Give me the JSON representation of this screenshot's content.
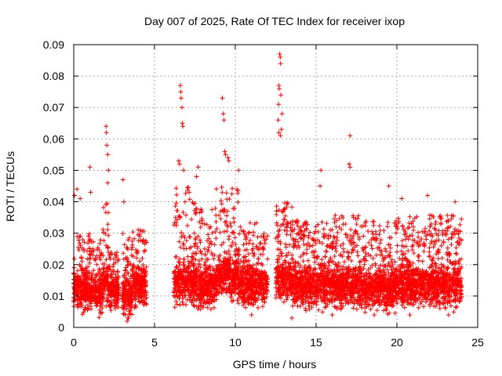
{
  "chart_data": {
    "type": "scatter",
    "title": "Day 007 of 2025, Rate Of TEC Index for receiver ixop",
    "xlabel": "GPS time / hours",
    "ylabel": "ROTI / TECUs",
    "xlim": [
      0,
      25
    ],
    "ylim": [
      0,
      0.09
    ],
    "xticks": [
      "0",
      "5",
      "10",
      "15",
      "20",
      "25"
    ],
    "yticks": [
      "0",
      "0.01",
      "0.02",
      "0.03",
      "0.04",
      "0.05",
      "0.06",
      "0.07",
      "0.08",
      "0.09"
    ],
    "grid": true,
    "marker": "+",
    "color": "#ff0000",
    "segments": [
      {
        "x0": 0.0,
        "x1": 1.0,
        "base": 0.012,
        "top": 0.03
      },
      {
        "x0": 1.0,
        "x1": 1.8,
        "base": 0.011,
        "top": 0.028
      },
      {
        "x0": 1.8,
        "x1": 2.2,
        "base": 0.013,
        "top": 0.04
      },
      {
        "x0": 2.2,
        "x1": 2.8,
        "base": 0.011,
        "top": 0.024
      },
      {
        "x0": 3.0,
        "x1": 3.6,
        "base": 0.01,
        "top": 0.03
      },
      {
        "x0": 3.6,
        "x1": 4.5,
        "base": 0.013,
        "top": 0.032
      },
      {
        "x0": 6.2,
        "x1": 7.5,
        "base": 0.014,
        "top": 0.045
      },
      {
        "x0": 7.5,
        "x1": 8.8,
        "base": 0.013,
        "top": 0.038
      },
      {
        "x0": 8.8,
        "x1": 10.2,
        "base": 0.016,
        "top": 0.045
      },
      {
        "x0": 10.2,
        "x1": 12.0,
        "base": 0.013,
        "top": 0.034
      },
      {
        "x0": 12.5,
        "x1": 13.5,
        "base": 0.015,
        "top": 0.04
      },
      {
        "x0": 13.5,
        "x1": 16.0,
        "base": 0.013,
        "top": 0.034
      },
      {
        "x0": 16.0,
        "x1": 18.0,
        "base": 0.013,
        "top": 0.036
      },
      {
        "x0": 18.0,
        "x1": 20.0,
        "base": 0.012,
        "top": 0.034
      },
      {
        "x0": 20.0,
        "x1": 22.0,
        "base": 0.013,
        "top": 0.036
      },
      {
        "x0": 22.0,
        "x1": 24.0,
        "base": 0.013,
        "top": 0.036
      }
    ],
    "peaks": [
      {
        "x": 0.05,
        "y": 0.042
      },
      {
        "x": 0.2,
        "y": 0.044
      },
      {
        "x": 0.4,
        "y": 0.041
      },
      {
        "x": 1.0,
        "y": 0.051
      },
      {
        "x": 1.05,
        "y": 0.043
      },
      {
        "x": 2.0,
        "y": 0.064
      },
      {
        "x": 2.02,
        "y": 0.062
      },
      {
        "x": 2.05,
        "y": 0.058
      },
      {
        "x": 2.1,
        "y": 0.055
      },
      {
        "x": 2.15,
        "y": 0.05
      },
      {
        "x": 2.1,
        "y": 0.046
      },
      {
        "x": 3.05,
        "y": 0.047
      },
      {
        "x": 3.1,
        "y": 0.04
      },
      {
        "x": 6.6,
        "y": 0.077
      },
      {
        "x": 6.62,
        "y": 0.075
      },
      {
        "x": 6.65,
        "y": 0.073
      },
      {
        "x": 6.7,
        "y": 0.07
      },
      {
        "x": 6.72,
        "y": 0.065
      },
      {
        "x": 6.75,
        "y": 0.064
      },
      {
        "x": 6.5,
        "y": 0.053
      },
      {
        "x": 6.55,
        "y": 0.052
      },
      {
        "x": 6.8,
        "y": 0.05
      },
      {
        "x": 7.7,
        "y": 0.051
      },
      {
        "x": 7.6,
        "y": 0.048
      },
      {
        "x": 9.2,
        "y": 0.073
      },
      {
        "x": 9.25,
        "y": 0.068
      },
      {
        "x": 9.3,
        "y": 0.066
      },
      {
        "x": 9.35,
        "y": 0.056
      },
      {
        "x": 9.4,
        "y": 0.055
      },
      {
        "x": 9.55,
        "y": 0.054
      },
      {
        "x": 9.6,
        "y": 0.053
      },
      {
        "x": 10.2,
        "y": 0.05
      },
      {
        "x": 12.75,
        "y": 0.087
      },
      {
        "x": 12.78,
        "y": 0.086
      },
      {
        "x": 12.8,
        "y": 0.084
      },
      {
        "x": 12.7,
        "y": 0.077
      },
      {
        "x": 12.72,
        "y": 0.076
      },
      {
        "x": 12.82,
        "y": 0.074
      },
      {
        "x": 12.68,
        "y": 0.071
      },
      {
        "x": 12.9,
        "y": 0.068
      },
      {
        "x": 12.65,
        "y": 0.066
      },
      {
        "x": 12.85,
        "y": 0.063
      },
      {
        "x": 12.7,
        "y": 0.062
      },
      {
        "x": 12.8,
        "y": 0.061
      },
      {
        "x": 15.3,
        "y": 0.05
      },
      {
        "x": 15.25,
        "y": 0.045
      },
      {
        "x": 17.1,
        "y": 0.061
      },
      {
        "x": 17.05,
        "y": 0.052
      },
      {
        "x": 17.1,
        "y": 0.051
      },
      {
        "x": 19.5,
        "y": 0.045
      },
      {
        "x": 20.3,
        "y": 0.041
      },
      {
        "x": 21.9,
        "y": 0.042
      },
      {
        "x": 23.6,
        "y": 0.04
      }
    ],
    "lows": [
      {
        "x": 3.3,
        "y": 0.002
      },
      {
        "x": 3.35,
        "y": 0.003
      },
      {
        "x": 3.2,
        "y": 0.004
      },
      {
        "x": 11.0,
        "y": 0.004
      },
      {
        "x": 13.5,
        "y": 0.003
      },
      {
        "x": 16.0,
        "y": 0.004
      },
      {
        "x": 18.6,
        "y": 0.004
      },
      {
        "x": 20.8,
        "y": 0.004
      },
      {
        "x": 23.2,
        "y": 0.004
      }
    ]
  }
}
